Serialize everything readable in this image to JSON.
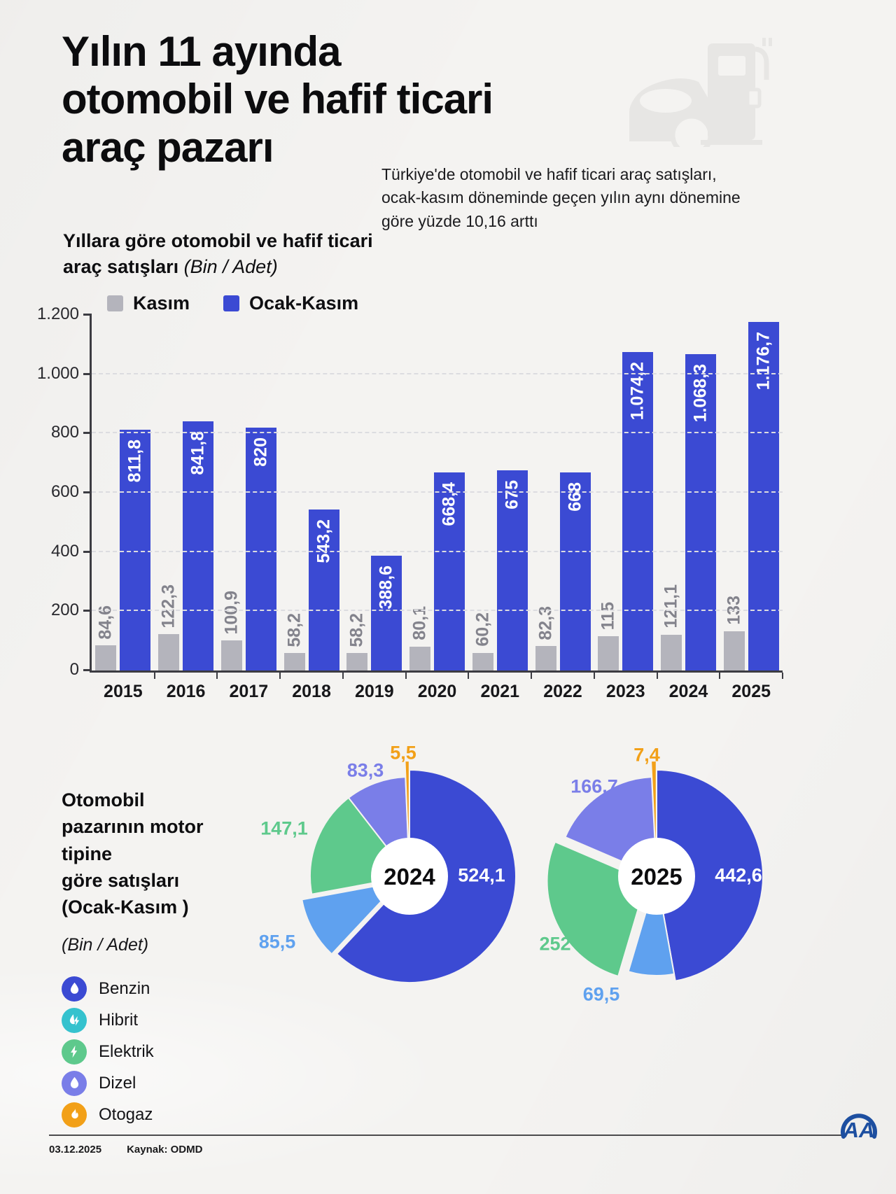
{
  "page": {
    "title_lines": [
      "Yılın 11 ayında",
      "otomobil ve hafif ticari",
      "araç pazarı"
    ],
    "subtitle": "Türkiye'de otomobil ve hafif ticari araç satışları, ocak-kasım döneminde geçen yılın aynı dönemine göre yüzde 10,16 arttı"
  },
  "bar_section": {
    "title_bold": "Yıllara göre otomobil ve hafif ticari araç satışları",
    "title_italic": "(Bin / Adet)"
  },
  "chart_data": [
    {
      "type": "bar",
      "title": "Yıllara göre otomobil ve hafif ticari araç satışları (Bin / Adet)",
      "categories": [
        "2015",
        "2016",
        "2017",
        "2018",
        "2019",
        "2020",
        "2021",
        "2022",
        "2023",
        "2024",
        "2025"
      ],
      "series": [
        {
          "name": "Kasım",
          "color": "#b4b4bc",
          "values": [
            84.6,
            122.3,
            100.9,
            58.2,
            58.2,
            80.1,
            60.2,
            82.3,
            115,
            121.1,
            133
          ],
          "labels": [
            "84,6",
            "122,3",
            "100,9",
            "58,2",
            "58,2",
            "80,1",
            "60,2",
            "82,3",
            "115",
            "121,1",
            "133"
          ]
        },
        {
          "name": "Ocak-Kasım",
          "color": "#3b4ad3",
          "values": [
            811.8,
            841.8,
            820,
            543.2,
            388.6,
            668.4,
            675,
            668,
            1074.2,
            1068.3,
            1176.7
          ],
          "labels": [
            "811,8",
            "841,8",
            "820",
            "543,2",
            "388,6",
            "668,4",
            "675",
            "668",
            "1.074,2",
            "1.068,3",
            "1.176,7"
          ]
        }
      ],
      "ylim": [
        0,
        1200
      ],
      "yticks": [
        "0",
        "200",
        "400",
        "600",
        "800",
        "1.000",
        "1.200"
      ],
      "grid": "horizontal-dashed",
      "legend_position": "top-left"
    },
    {
      "type": "pie",
      "center_label": "2024",
      "title": "Otomobil pazarının motor tipine göre satışları (Ocak-Kasım) 2024 (Bin / Adet)",
      "slices": [
        {
          "name": "Benzin",
          "value": 524.1,
          "label": "524,1",
          "color": "#3b4ad3"
        },
        {
          "name": "Hibrit",
          "value": 85.5,
          "label": "85,5",
          "color": "#5fa1ef"
        },
        {
          "name": "Elektrik",
          "value": 147.1,
          "label": "147,1",
          "color": "#5ec98c"
        },
        {
          "name": "Dizel",
          "value": 83.3,
          "label": "83,3",
          "color": "#7a7ee8"
        },
        {
          "name": "Otogaz",
          "value": 5.5,
          "label": "5,5",
          "color": "#f2a018"
        }
      ]
    },
    {
      "type": "pie",
      "center_label": "2025",
      "title": "Otomobil pazarının motor tipine göre satışları (Ocak-Kasım) 2025 (Bin / Adet)",
      "slices": [
        {
          "name": "Benzin",
          "value": 442.6,
          "label": "442,6",
          "color": "#3b4ad3"
        },
        {
          "name": "Hibrit",
          "value": 69.5,
          "label": "69,5",
          "color": "#5fa1ef"
        },
        {
          "name": "Elektrik",
          "value": 252,
          "label": "252",
          "color": "#5ec98c"
        },
        {
          "name": "Dizel",
          "value": 166.7,
          "label": "166,7",
          "color": "#7a7ee8"
        },
        {
          "name": "Otogaz",
          "value": 7.4,
          "label": "7,4",
          "color": "#f2a018"
        }
      ]
    }
  ],
  "pie_section": {
    "title_lines": [
      "Otomobil",
      "pazarının motor tipine",
      "göre satışları",
      "(Ocak-Kasım )"
    ],
    "subtitle_italic": "(Bin / Adet)",
    "legend": [
      {
        "label": "Benzin",
        "color": "#3b4ad3",
        "icon": "drop",
        "slug": "benzin"
      },
      {
        "label": "Hibrit",
        "color": "#35c2ce",
        "icon": "hybrid",
        "slug": "hibrit"
      },
      {
        "label": "Elektrik",
        "color": "#5ec98c",
        "icon": "bolt",
        "slug": "elektrik"
      },
      {
        "label": "Dizel",
        "color": "#7a7ee8",
        "icon": "drop",
        "slug": "dizel"
      },
      {
        "label": "Otogaz",
        "color": "#f2a018",
        "icon": "flame",
        "slug": "otogaz"
      }
    ]
  },
  "footer": {
    "date": "03.12.2025",
    "source": "Kaynak: ODMD",
    "logo": "AA"
  }
}
